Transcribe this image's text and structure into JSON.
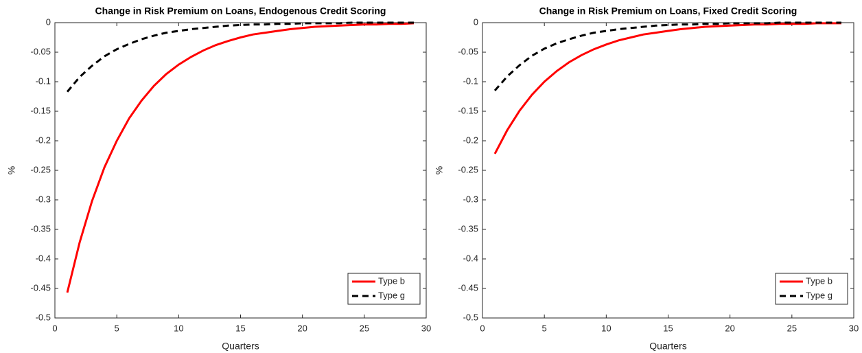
{
  "chart_data": [
    {
      "type": "line",
      "title": "Change in Risk Premium on Loans, Endogenous Credit Scoring",
      "xlabel": "Quarters",
      "ylabel": "%",
      "x": [
        1,
        2,
        3,
        4,
        5,
        6,
        7,
        8,
        9,
        10,
        11,
        12,
        13,
        14,
        15,
        16,
        17,
        18,
        19,
        20,
        21,
        22,
        23,
        24,
        25,
        26,
        27,
        28,
        29
      ],
      "series": [
        {
          "name": "Type b",
          "color": "#ff0000",
          "dashed": false,
          "values": [
            -0.457,
            -0.372,
            -0.302,
            -0.245,
            -0.2,
            -0.162,
            -0.132,
            -0.107,
            -0.087,
            -0.071,
            -0.058,
            -0.047,
            -0.038,
            -0.031,
            -0.025,
            -0.02,
            -0.017,
            -0.014,
            -0.011,
            -0.009,
            -0.007,
            -0.006,
            -0.005,
            -0.004,
            -0.003,
            -0.003,
            -0.002,
            -0.002,
            -0.001
          ]
        },
        {
          "name": "Type g",
          "color": "#000000",
          "dashed": true,
          "values": [
            -0.117,
            -0.092,
            -0.073,
            -0.057,
            -0.045,
            -0.036,
            -0.028,
            -0.022,
            -0.017,
            -0.014,
            -0.011,
            -0.009,
            -0.007,
            -0.005,
            -0.004,
            -0.003,
            -0.003,
            -0.002,
            -0.002,
            -0.001,
            -0.001,
            -0.001,
            -0.001,
            0,
            0,
            0,
            0,
            0,
            0
          ]
        }
      ],
      "xlim": [
        0,
        30
      ],
      "xticks": [
        0,
        5,
        10,
        15,
        20,
        25,
        30
      ],
      "ylim": [
        -0.5,
        0
      ],
      "yticks": [
        -0.5,
        -0.45,
        -0.4,
        -0.35,
        -0.3,
        -0.25,
        -0.2,
        -0.15,
        -0.1,
        -0.05,
        0
      ],
      "grid": false,
      "legend": "lower-right"
    },
    {
      "type": "line",
      "title": "Change in Risk Premium on Loans, Fixed Credit Scoring",
      "xlabel": "Quarters",
      "ylabel": "%",
      "x": [
        1,
        2,
        3,
        4,
        5,
        6,
        7,
        8,
        9,
        10,
        11,
        12,
        13,
        14,
        15,
        16,
        17,
        18,
        19,
        20,
        21,
        22,
        23,
        24,
        25,
        26,
        27,
        28,
        29
      ],
      "series": [
        {
          "name": "Type b",
          "color": "#ff0000",
          "dashed": false,
          "values": [
            -0.222,
            -0.182,
            -0.149,
            -0.122,
            -0.1,
            -0.082,
            -0.067,
            -0.055,
            -0.045,
            -0.037,
            -0.03,
            -0.025,
            -0.02,
            -0.017,
            -0.014,
            -0.011,
            -0.009,
            -0.007,
            -0.006,
            -0.005,
            -0.004,
            -0.003,
            -0.003,
            -0.002,
            -0.002,
            -0.002,
            -0.001,
            -0.001,
            -0.001
          ]
        },
        {
          "name": "Type g",
          "color": "#000000",
          "dashed": true,
          "values": [
            -0.115,
            -0.091,
            -0.072,
            -0.056,
            -0.044,
            -0.035,
            -0.028,
            -0.022,
            -0.017,
            -0.014,
            -0.011,
            -0.009,
            -0.007,
            -0.005,
            -0.004,
            -0.003,
            -0.003,
            -0.002,
            -0.002,
            -0.001,
            -0.001,
            -0.001,
            -0.001,
            0,
            0,
            0,
            0,
            0,
            0
          ]
        }
      ],
      "xlim": [
        0,
        30
      ],
      "xticks": [
        0,
        5,
        10,
        15,
        20,
        25,
        30
      ],
      "ylim": [
        -0.5,
        0
      ],
      "yticks": [
        -0.5,
        -0.45,
        -0.4,
        -0.35,
        -0.3,
        -0.25,
        -0.2,
        -0.15,
        -0.1,
        -0.05,
        0
      ],
      "grid": false,
      "legend": "lower-right"
    }
  ]
}
